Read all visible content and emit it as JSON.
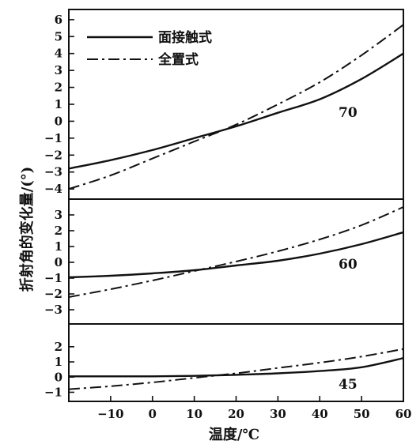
{
  "chart_data": {
    "type": "line",
    "xlabel": "温度/℃",
    "ylabel": "折射角的变化量/(°)",
    "xlim": [
      -20,
      60
    ],
    "xticks": [
      -10,
      0,
      10,
      20,
      30,
      40,
      50,
      60
    ],
    "grid": false,
    "legend": {
      "placement": "top-left",
      "entries": [
        {
          "label": "面接触式",
          "style": "solid",
          "series_key": "face_contact"
        },
        {
          "label": "全置式",
          "style": "dashdot",
          "series_key": "full_embedded"
        }
      ]
    },
    "panels": [
      {
        "label": "70",
        "ylim": [
          -4.6,
          6.6
        ],
        "yticks": [
          -4,
          -3,
          -2,
          -1,
          0,
          1,
          2,
          3,
          4,
          5,
          6
        ],
        "series": [
          {
            "key": "face_contact",
            "x": [
              -20,
              -10,
              0,
              10,
              20,
              30,
              40,
              50,
              60
            ],
            "y": [
              -2.8,
              -2.3,
              -1.7,
              -1.0,
              -0.3,
              0.5,
              1.3,
              2.5,
              4.0
            ]
          },
          {
            "key": "full_embedded",
            "x": [
              -20,
              -10,
              0,
              10,
              20,
              30,
              40,
              50,
              60
            ],
            "y": [
              -4.0,
              -3.2,
              -2.2,
              -1.2,
              -0.2,
              1.0,
              2.3,
              3.9,
              5.7
            ]
          }
        ]
      },
      {
        "label": "60",
        "ylim": [
          -3.9,
          4.0
        ],
        "yticks": [
          -3,
          -2,
          -1,
          0,
          1,
          2,
          3
        ],
        "series": [
          {
            "key": "face_contact",
            "x": [
              -20,
              -10,
              0,
              10,
              20,
              30,
              40,
              50,
              60
            ],
            "y": [
              -0.95,
              -0.85,
              -0.7,
              -0.5,
              -0.2,
              0.1,
              0.55,
              1.15,
              1.9
            ]
          },
          {
            "key": "full_embedded",
            "x": [
              -20,
              -10,
              0,
              10,
              20,
              30,
              40,
              50,
              60
            ],
            "y": [
              -2.2,
              -1.7,
              -1.15,
              -0.55,
              0.05,
              0.7,
              1.45,
              2.35,
              3.5
            ]
          }
        ]
      },
      {
        "label": "45",
        "ylim": [
          -1.6,
          3.5
        ],
        "yticks": [
          -1,
          0,
          1,
          2
        ],
        "series": [
          {
            "key": "face_contact",
            "x": [
              -20,
              -10,
              0,
              10,
              20,
              30,
              40,
              50,
              60
            ],
            "y": [
              0.05,
              0.05,
              0.05,
              0.08,
              0.15,
              0.25,
              0.4,
              0.65,
              1.25
            ]
          },
          {
            "key": "full_embedded",
            "x": [
              -20,
              -10,
              0,
              10,
              20,
              30,
              40,
              50,
              60
            ],
            "y": [
              -0.8,
              -0.6,
              -0.35,
              -0.05,
              0.25,
              0.6,
              0.95,
              1.35,
              1.85
            ]
          }
        ]
      }
    ]
  }
}
